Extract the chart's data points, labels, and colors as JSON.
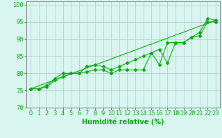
{
  "xlabel": "Humidité relative (%)",
  "bg_color": "#d8f5f0",
  "line_color": "#00aa00",
  "grid_color": "#b0c8c8",
  "xlim": [
    -0.5,
    23.5
  ],
  "ylim": [
    70,
    101
  ],
  "yticks": [
    70,
    75,
    80,
    85,
    90,
    95,
    100
  ],
  "xticks": [
    0,
    1,
    2,
    3,
    4,
    5,
    6,
    7,
    8,
    9,
    10,
    11,
    12,
    13,
    14,
    15,
    16,
    17,
    18,
    19,
    20,
    21,
    22,
    23
  ],
  "line1_x": [
    0,
    1,
    2,
    3,
    4,
    5,
    6,
    7,
    8,
    9,
    10,
    11,
    12,
    13,
    14,
    15,
    16,
    17,
    18,
    19,
    20,
    21,
    22,
    23
  ],
  "line1_y": [
    75.5,
    75.5,
    76,
    78,
    79,
    80,
    80,
    80.5,
    81,
    81,
    80,
    81,
    81,
    81,
    81,
    86,
    82.5,
    89,
    89,
    89,
    90.5,
    91,
    95,
    95
  ],
  "line2_x": [
    0,
    1,
    2,
    3,
    4,
    5,
    6,
    7,
    8,
    9,
    10,
    11,
    12,
    13,
    14,
    15,
    16,
    17,
    18,
    19,
    20,
    21,
    22,
    23
  ],
  "line2_y": [
    75.5,
    75.5,
    76.5,
    78.5,
    80,
    80,
    80,
    82,
    82.5,
    82,
    81,
    82,
    83,
    84,
    85,
    86,
    87,
    83,
    89,
    89,
    90.5,
    92,
    96,
    95.5
  ],
  "line3_x": [
    0,
    23
  ],
  "line3_y": [
    75.5,
    95.5
  ],
  "xlabel_fontsize": 7,
  "tick_fontsize": 6,
  "marker": "D",
  "markersize": 2.0,
  "linewidth": 0.8
}
